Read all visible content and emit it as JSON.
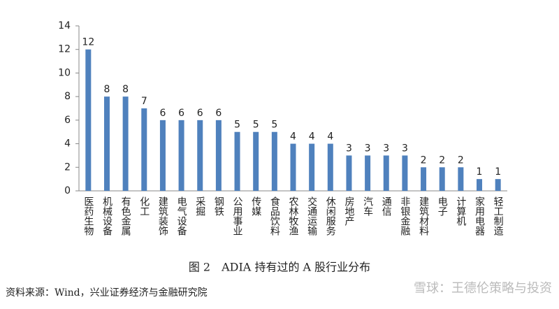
{
  "chart_data": {
    "type": "bar",
    "categories": [
      "医药生物",
      "机械设备",
      "有色金属",
      "化工",
      "建筑装饰",
      "电气设备",
      "采掘",
      "钢铁",
      "公用事业",
      "传媒",
      "食品饮料",
      "农林牧渔",
      "交通运输",
      "休闲服务",
      "房地产",
      "汽车",
      "通信",
      "非银金融",
      "建筑材料",
      "电子",
      "计算机",
      "家用电器",
      "轻工制造"
    ],
    "values": [
      12,
      8,
      8,
      7,
      6,
      6,
      6,
      6,
      5,
      5,
      5,
      4,
      4,
      4,
      3,
      3,
      3,
      3,
      2,
      2,
      2,
      1,
      1
    ],
    "color": "#4f81bd",
    "ylim": [
      0,
      14
    ],
    "yticks": [
      0,
      2,
      4,
      6,
      8,
      10,
      12,
      14
    ],
    "grid": false
  },
  "caption": "图 2　ADIA 持有过的 A 股行业分布",
  "source": "资料来源：Wind，兴业证券经济与金融研究院",
  "watermark": "雪球：王德伦策略与投资"
}
